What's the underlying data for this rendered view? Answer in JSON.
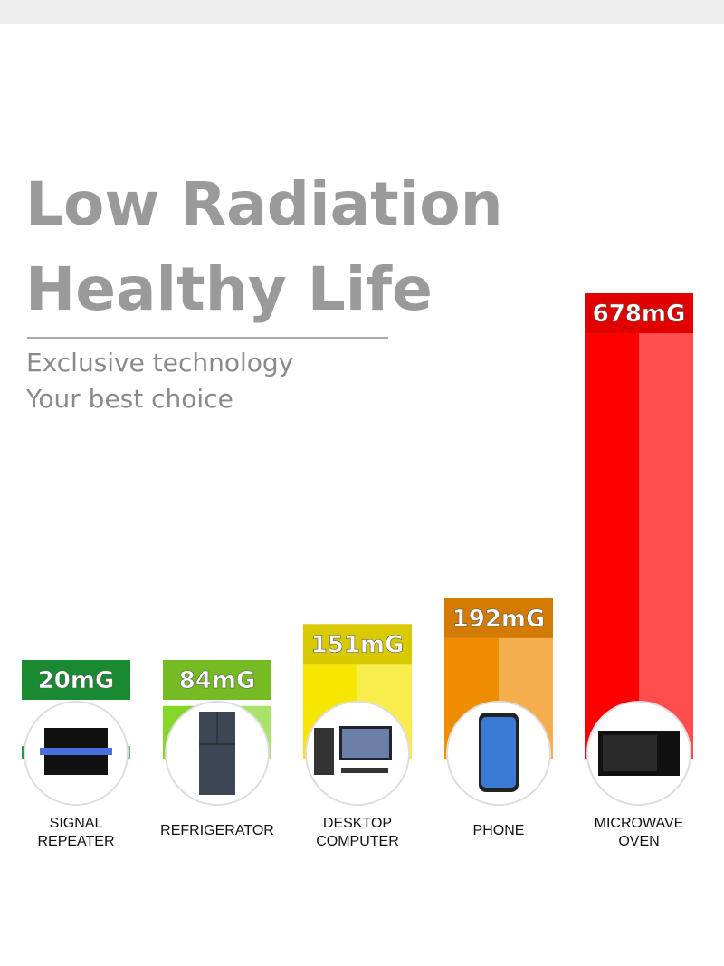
{
  "chart_data": {
    "type": "bar",
    "title": [
      "Low Radiation",
      "Healthy Life"
    ],
    "subtitle": [
      "Exclusive technology",
      "Your best choice"
    ],
    "categories": [
      "SIGNAL REPEATER",
      "REFRIGERATOR",
      "DESKTOP COMPUTER",
      "PHONE",
      "MICROWAVE OVEN"
    ],
    "values": [
      20,
      84,
      151,
      192,
      678
    ],
    "value_labels": [
      "20mG",
      "84mG",
      "151mG",
      "192mG",
      "678mG"
    ],
    "colors": [
      "#1e9e3a",
      "#86d62a",
      "#f7e600",
      "#f08c00",
      "#ff0000"
    ]
  }
}
